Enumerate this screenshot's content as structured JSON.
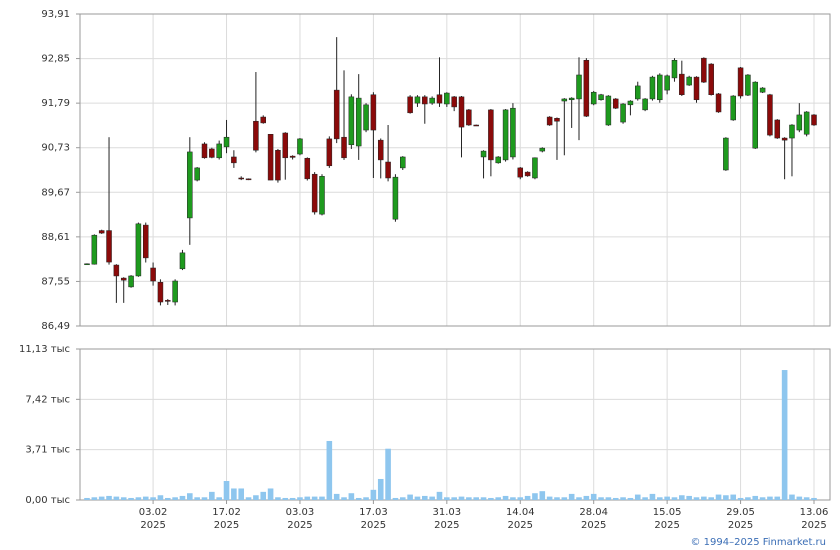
{
  "chart_data": [
    {
      "type": "candlestick",
      "open": [
        87.96,
        87.96,
        88.76,
        88.76,
        87.94,
        87.63,
        87.42,
        87.68,
        88.89,
        87.87,
        87.53,
        87.1,
        87.06,
        87.85,
        89.06,
        89.96,
        90.82,
        90.7,
        90.49,
        90.75,
        90.51,
        90.01,
        89.99,
        91.36,
        91.46,
        91.05,
        90.67,
        91.08,
        90.53,
        90.58,
        90.48,
        90.1,
        89.15,
        90.94,
        92.1,
        90.98,
        90.8,
        90.77,
        91.15,
        91.99,
        90.91,
        90.39,
        89.03,
        90.25,
        91.94,
        91.79,
        91.94,
        91.79,
        91.99,
        91.77,
        91.94,
        91.94,
        91.63,
        91.27,
        90.51,
        91.63,
        90.37,
        90.44,
        90.51,
        90.25,
        90.15,
        90.01,
        90.65,
        91.46,
        91.43,
        91.84,
        91.87,
        91.89,
        92.81,
        91.77,
        91.87,
        91.27,
        91.89,
        91.34,
        91.75,
        91.89,
        91.63,
        91.89,
        91.87,
        92.1,
        92.39,
        92.48,
        92.22,
        92.41,
        92.86,
        92.72,
        92.01,
        90.2,
        91.39,
        92.63,
        91.98,
        90.72,
        92.05,
        91.99,
        91.39,
        90.96,
        90.96,
        91.15,
        91.05,
        91.51
      ],
      "high": [
        87.98,
        88.67,
        88.78,
        90.98,
        87.96,
        87.65,
        87.7,
        88.95,
        88.95,
        88.0,
        87.6,
        87.13,
        87.6,
        88.3,
        90.98,
        90.27,
        90.86,
        90.73,
        90.9,
        91.39,
        90.67,
        90.05,
        90.0,
        92.53,
        91.5,
        91.05,
        90.7,
        91.1,
        90.55,
        90.96,
        90.5,
        90.15,
        90.1,
        91.0,
        93.36,
        92.57,
        92.0,
        92.48,
        91.79,
        92.05,
        90.95,
        91.27,
        90.1,
        90.53,
        91.98,
        91.98,
        91.98,
        91.95,
        92.88,
        92.05,
        91.96,
        91.96,
        91.65,
        91.28,
        90.67,
        91.65,
        90.53,
        91.65,
        91.79,
        90.27,
        90.17,
        90.5,
        90.74,
        91.48,
        91.45,
        91.91,
        91.93,
        92.88,
        92.86,
        92.08,
        92.01,
        91.98,
        91.91,
        91.79,
        91.86,
        92.3,
        91.91,
        92.44,
        92.5,
        92.47,
        92.86,
        92.8,
        92.44,
        92.43,
        92.88,
        92.74,
        92.03,
        90.98,
        91.98,
        92.65,
        92.48,
        92.31,
        92.17,
        92.01,
        91.41,
        90.98,
        91.29,
        91.79,
        91.6,
        91.53
      ],
      "low": [
        87.94,
        87.95,
        88.68,
        87.95,
        87.04,
        87.04,
        87.4,
        87.66,
        88.0,
        87.45,
        86.98,
        86.99,
        86.98,
        87.82,
        88.42,
        89.93,
        90.47,
        90.48,
        90.45,
        90.6,
        90.25,
        89.96,
        89.96,
        90.62,
        91.3,
        89.96,
        89.9,
        89.97,
        90.45,
        90.55,
        89.95,
        89.14,
        89.12,
        90.25,
        90.84,
        90.44,
        90.7,
        90.44,
        91.1,
        90.01,
        90.0,
        89.93,
        88.97,
        90.2,
        91.54,
        91.7,
        91.3,
        91.75,
        91.7,
        91.7,
        91.6,
        90.5,
        91.25,
        91.25,
        90.0,
        90.05,
        90.35,
        90.4,
        90.45,
        89.98,
        90.04,
        89.98,
        90.62,
        91.25,
        90.44,
        90.55,
        91.2,
        90.91,
        91.46,
        91.74,
        91.85,
        91.25,
        91.65,
        91.3,
        91.5,
        91.85,
        91.6,
        91.85,
        91.8,
        92.0,
        92.3,
        91.96,
        92.2,
        91.8,
        92.27,
        91.97,
        91.56,
        90.18,
        91.37,
        91.9,
        91.96,
        90.7,
        92.03,
        91.0,
        90.94,
        89.98,
        90.05,
        91.1,
        91.0,
        91.25
      ],
      "close": [
        87.97,
        88.65,
        88.7,
        88.01,
        87.68,
        87.58,
        87.68,
        88.92,
        88.11,
        87.56,
        87.06,
        87.08,
        87.56,
        88.23,
        90.63,
        90.25,
        90.49,
        90.5,
        90.82,
        90.98,
        90.37,
        90.0,
        89.98,
        90.67,
        91.32,
        89.96,
        89.96,
        90.49,
        90.5,
        90.94,
        89.99,
        89.2,
        90.05,
        90.3,
        90.94,
        90.49,
        91.94,
        91.91,
        91.75,
        91.15,
        90.44,
        90.01,
        90.03,
        90.51,
        91.56,
        91.94,
        91.77,
        91.91,
        91.79,
        92.03,
        91.7,
        91.22,
        91.27,
        91.26,
        90.65,
        90.44,
        90.51,
        91.63,
        91.67,
        90.03,
        90.06,
        90.49,
        90.72,
        91.27,
        91.36,
        91.89,
        91.91,
        92.46,
        91.48,
        92.05,
        91.99,
        91.96,
        91.67,
        91.77,
        91.84,
        92.2,
        91.89,
        92.41,
        92.46,
        92.44,
        92.81,
        91.99,
        92.41,
        91.87,
        92.29,
        91.99,
        91.58,
        90.96,
        91.96,
        91.96,
        92.46,
        92.29,
        92.15,
        91.03,
        90.96,
        90.91,
        91.27,
        91.51,
        91.58,
        91.27
      ],
      "up_color": "#1e9a1e",
      "down_color": "#8b0a0a",
      "ylim": [
        86.49,
        93.91
      ],
      "yticks": [
        {
          "value": 86.49,
          "label": "86,49"
        },
        {
          "value": 87.55,
          "label": "87,55"
        },
        {
          "value": 88.61,
          "label": "88,61"
        },
        {
          "value": 89.67,
          "label": "89,67"
        },
        {
          "value": 90.73,
          "label": "90,73"
        },
        {
          "value": 91.79,
          "label": "91,79"
        },
        {
          "value": 92.85,
          "label": "92,85"
        },
        {
          "value": 93.91,
          "label": "93,91"
        }
      ],
      "grid": true
    },
    {
      "type": "bar",
      "categories": [
        null,
        null,
        null,
        null,
        null,
        null,
        null,
        null,
        null,
        "03.02\n2025",
        null,
        null,
        null,
        null,
        null,
        null,
        null,
        null,
        null,
        "17.02\n2025",
        null,
        null,
        null,
        null,
        null,
        null,
        null,
        null,
        null,
        "03.03\n2025",
        null,
        null,
        null,
        null,
        null,
        null,
        null,
        null,
        null,
        "17.03\n2025",
        null,
        null,
        null,
        null,
        null,
        null,
        null,
        null,
        null,
        "31.03\n2025",
        null,
        null,
        null,
        null,
        null,
        null,
        null,
        null,
        null,
        "14.04\n2025",
        null,
        null,
        null,
        null,
        null,
        null,
        null,
        null,
        null,
        "28.04\n2025",
        null,
        null,
        null,
        null,
        null,
        null,
        null,
        null,
        null,
        "15.05\n2025",
        null,
        null,
        null,
        null,
        null,
        null,
        null,
        null,
        null,
        "29.05\n2025",
        null,
        null,
        null,
        null,
        null,
        null,
        null,
        null,
        null,
        "13.06\n2025"
      ],
      "values": [
        0.15,
        0.2,
        0.25,
        0.3,
        0.25,
        0.2,
        0.15,
        0.2,
        0.25,
        0.2,
        0.35,
        0.15,
        0.2,
        0.3,
        0.5,
        0.2,
        0.2,
        0.6,
        0.2,
        1.4,
        0.85,
        0.85,
        0.2,
        0.35,
        0.6,
        0.85,
        0.2,
        0.15,
        0.15,
        0.2,
        0.25,
        0.25,
        0.25,
        4.35,
        0.45,
        0.2,
        0.5,
        0.15,
        0.2,
        0.75,
        1.55,
        3.78,
        0.15,
        0.2,
        0.4,
        0.25,
        0.3,
        0.25,
        0.6,
        0.2,
        0.2,
        0.25,
        0.2,
        0.2,
        0.2,
        0.15,
        0.2,
        0.3,
        0.2,
        0.2,
        0.3,
        0.5,
        0.65,
        0.25,
        0.2,
        0.2,
        0.45,
        0.2,
        0.3,
        0.45,
        0.2,
        0.2,
        0.15,
        0.2,
        0.15,
        0.4,
        0.2,
        0.45,
        0.2,
        0.25,
        0.2,
        0.35,
        0.3,
        0.2,
        0.25,
        0.2,
        0.4,
        0.35,
        0.4,
        0.15,
        0.2,
        0.3,
        0.2,
        0.25,
        0.25,
        9.58,
        0.4,
        0.25,
        0.2,
        0.15
      ],
      "color": "#8ec6ee",
      "ylim": [
        0,
        11.13
      ],
      "yticks": [
        {
          "value": 0,
          "label": "0,00 тыс"
        },
        {
          "value": 3.71,
          "label": "3,71 тыс"
        },
        {
          "value": 7.42,
          "label": "7,42 тыс"
        },
        {
          "value": 11.13,
          "label": "11,13 тыс"
        }
      ],
      "grid": true
    }
  ],
  "footer": "© 1994–2025 Finmarket.ru"
}
